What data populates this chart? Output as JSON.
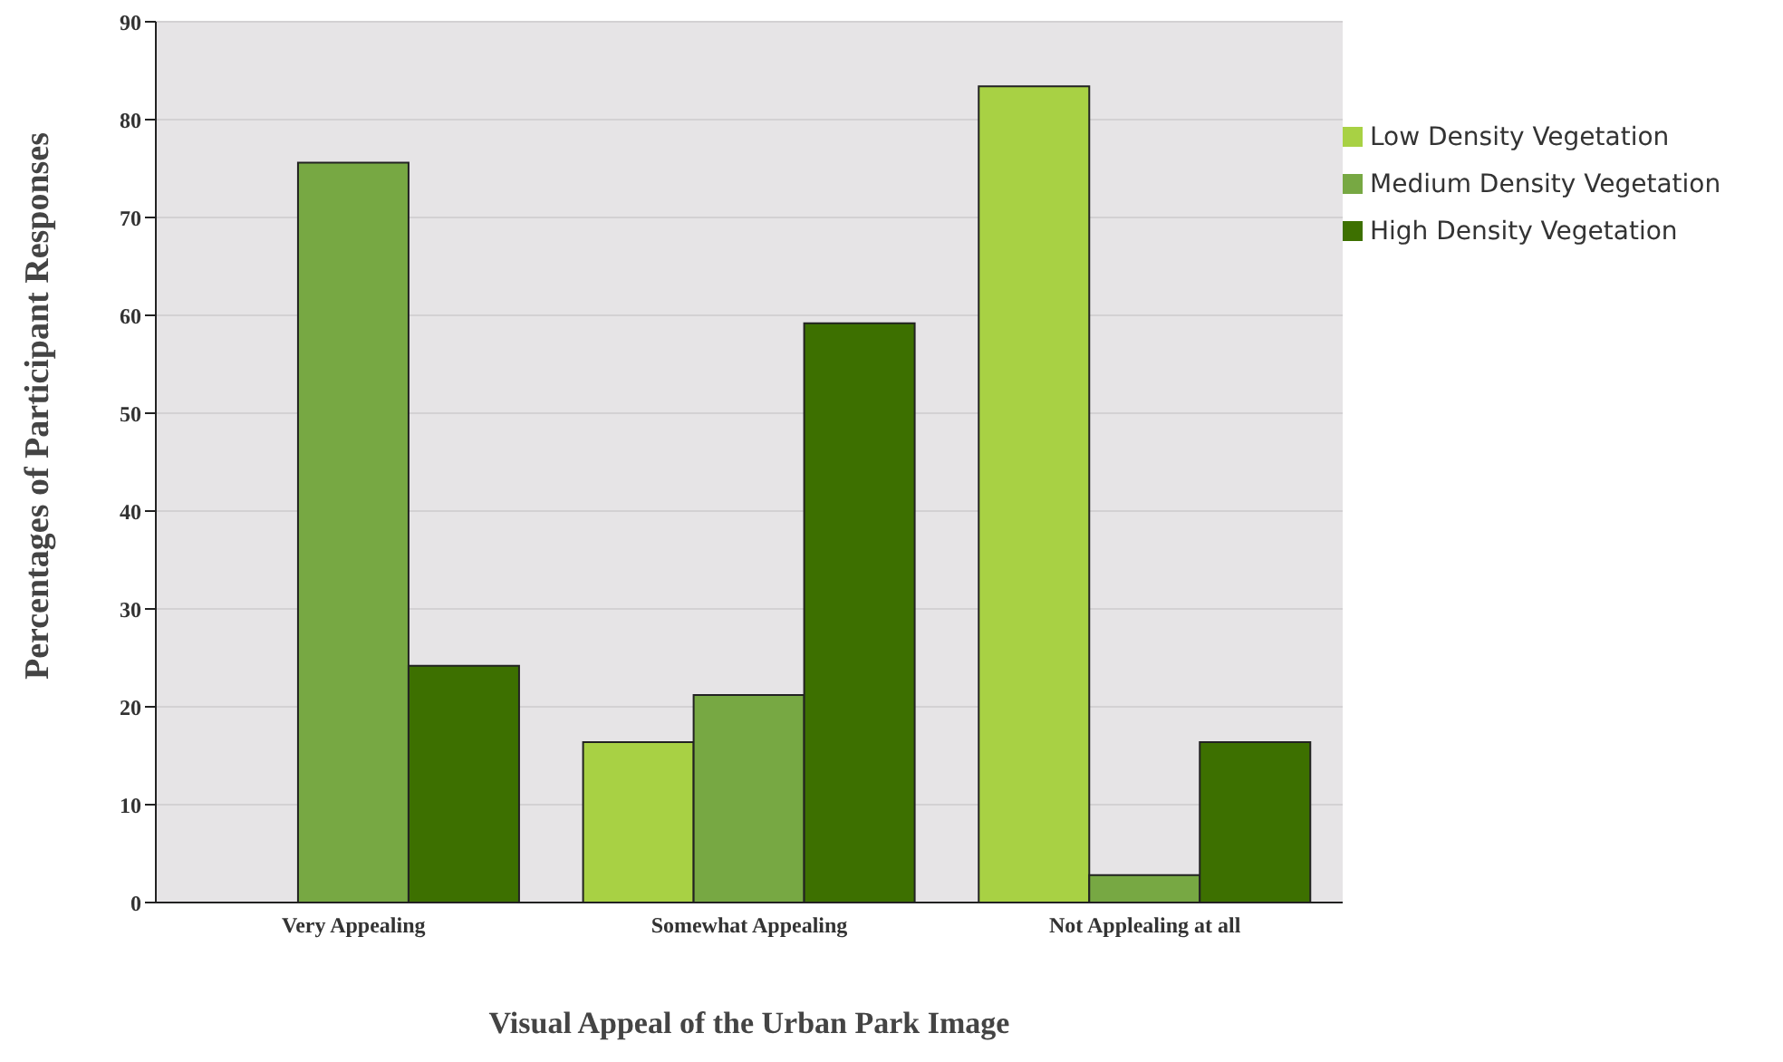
{
  "chart_data": {
    "type": "bar",
    "xlabel": "Visual Appeal of the Urban Park Image",
    "ylabel": "Percentages of Participant Responses",
    "categories": [
      "Very Appealing",
      "Somewhat Appealing",
      "Not Applealing at all"
    ],
    "series": [
      {
        "name": "Low Density Vegetation",
        "color": "#a8d144",
        "values": [
          0,
          16.4,
          83.4
        ]
      },
      {
        "name": "Medium Density Vegetation",
        "color": "#77a843",
        "values": [
          75.6,
          21.2,
          2.8
        ]
      },
      {
        "name": "High Density Vegetation",
        "color": "#3d7000",
        "values": [
          24.2,
          59.2,
          16.4
        ]
      }
    ],
    "ylim": [
      0,
      90
    ],
    "yticks": [
      0,
      10,
      20,
      30,
      40,
      50,
      60,
      70,
      80,
      90
    ],
    "grid": "y",
    "legend": "right"
  }
}
